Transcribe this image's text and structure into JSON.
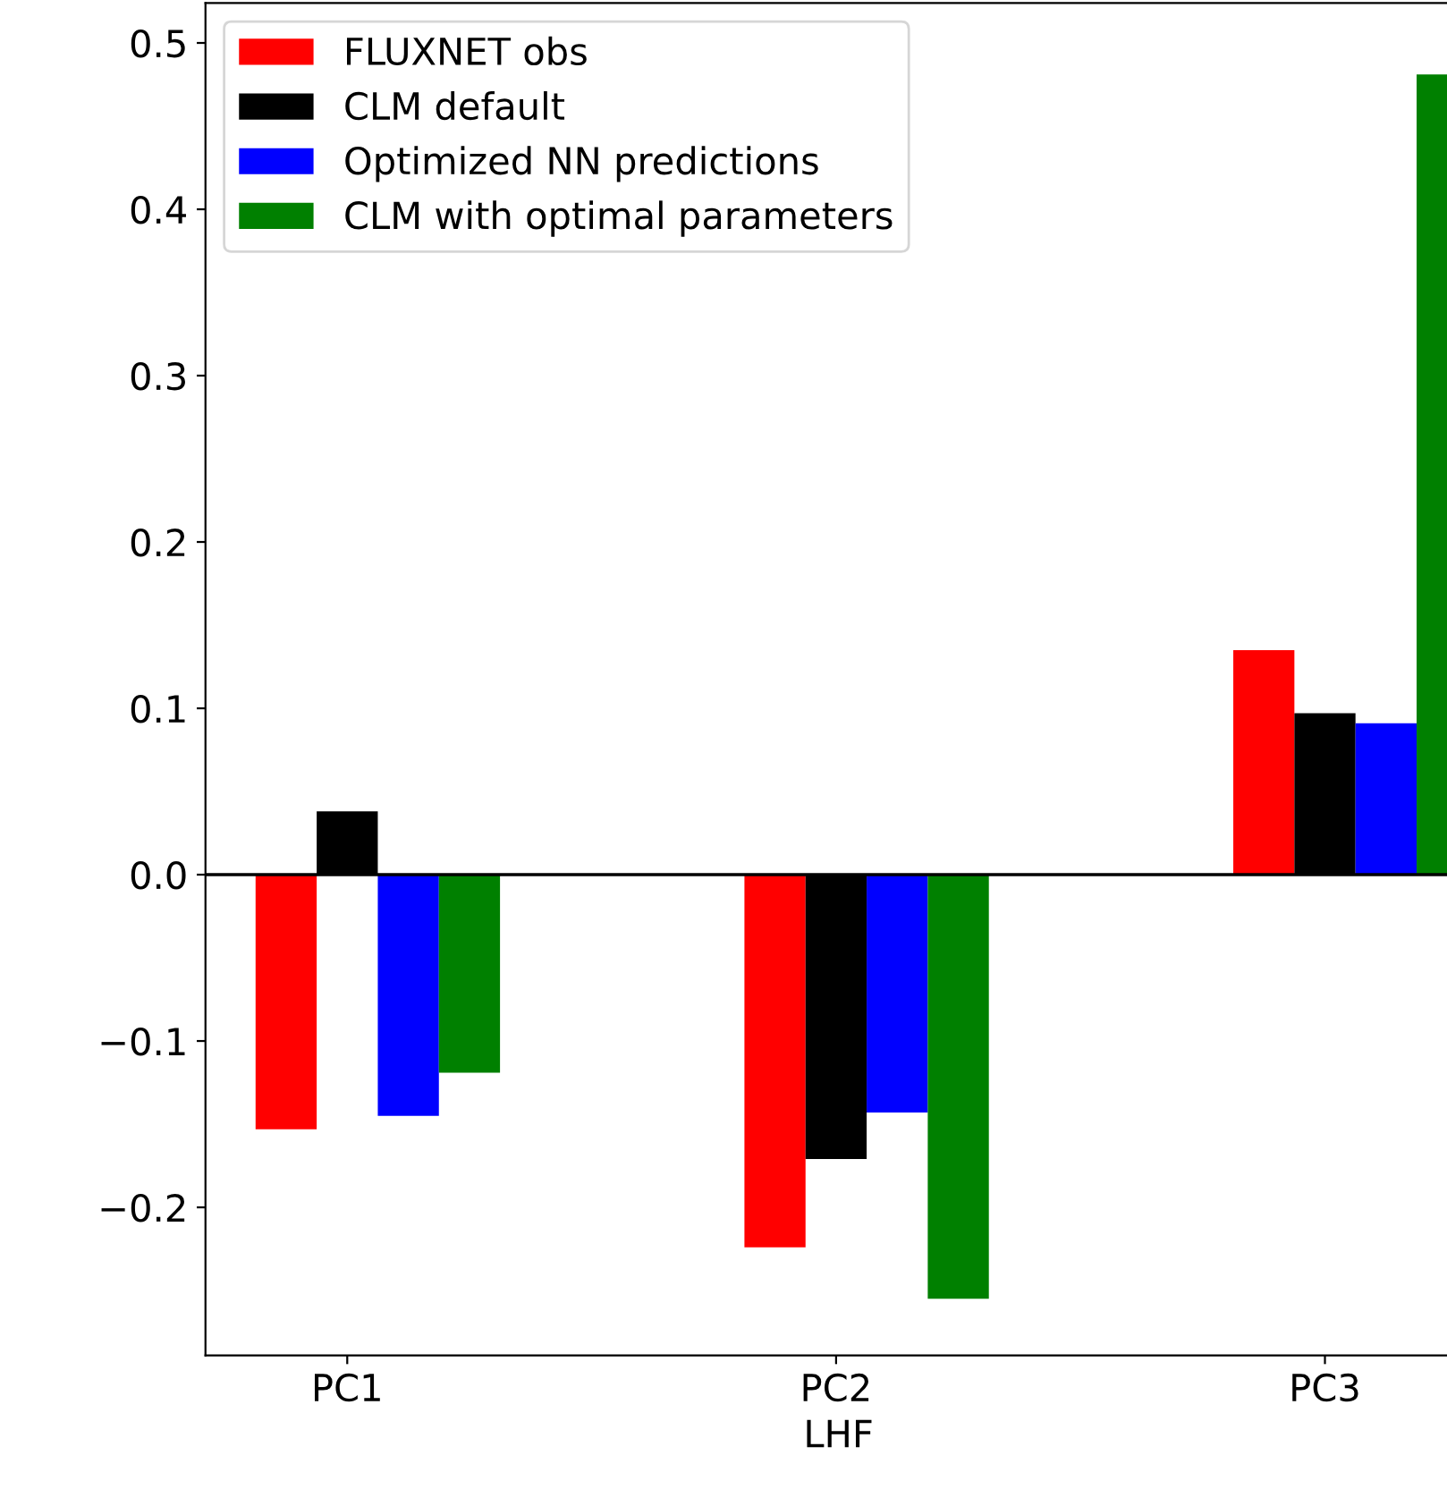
{
  "chart_data": {
    "type": "bar",
    "xlabel": "LHF",
    "categories": [
      "PC1",
      "PC2",
      "PC3"
    ],
    "series": [
      {
        "name": "FLUXNET obs",
        "color": "#ff0000",
        "values": [
          -0.153,
          -0.224,
          0.135
        ]
      },
      {
        "name": "CLM default",
        "color": "#000000",
        "values": [
          0.038,
          -0.171,
          0.097
        ]
      },
      {
        "name": "Optimized NN predictions",
        "color": "#0000ff",
        "values": [
          -0.145,
          -0.143,
          0.091
        ]
      },
      {
        "name": "CLM with optimal parameters",
        "color": "#008000",
        "values": [
          -0.119,
          -0.255,
          0.481
        ]
      }
    ],
    "ylim": [
      -0.289,
      0.524
    ],
    "yticks": [
      {
        "value": -0.2,
        "label": "−0.2"
      },
      {
        "value": -0.1,
        "label": "−0.1"
      },
      {
        "value": 0,
        "label": "0.0"
      },
      0.1,
      0.2,
      0.3,
      0.4,
      0.5
    ],
    "ref_lines": [
      {
        "axis": "y",
        "value": 0,
        "color": "#000000"
      }
    ],
    "legend": "top left",
    "grid": false
  }
}
